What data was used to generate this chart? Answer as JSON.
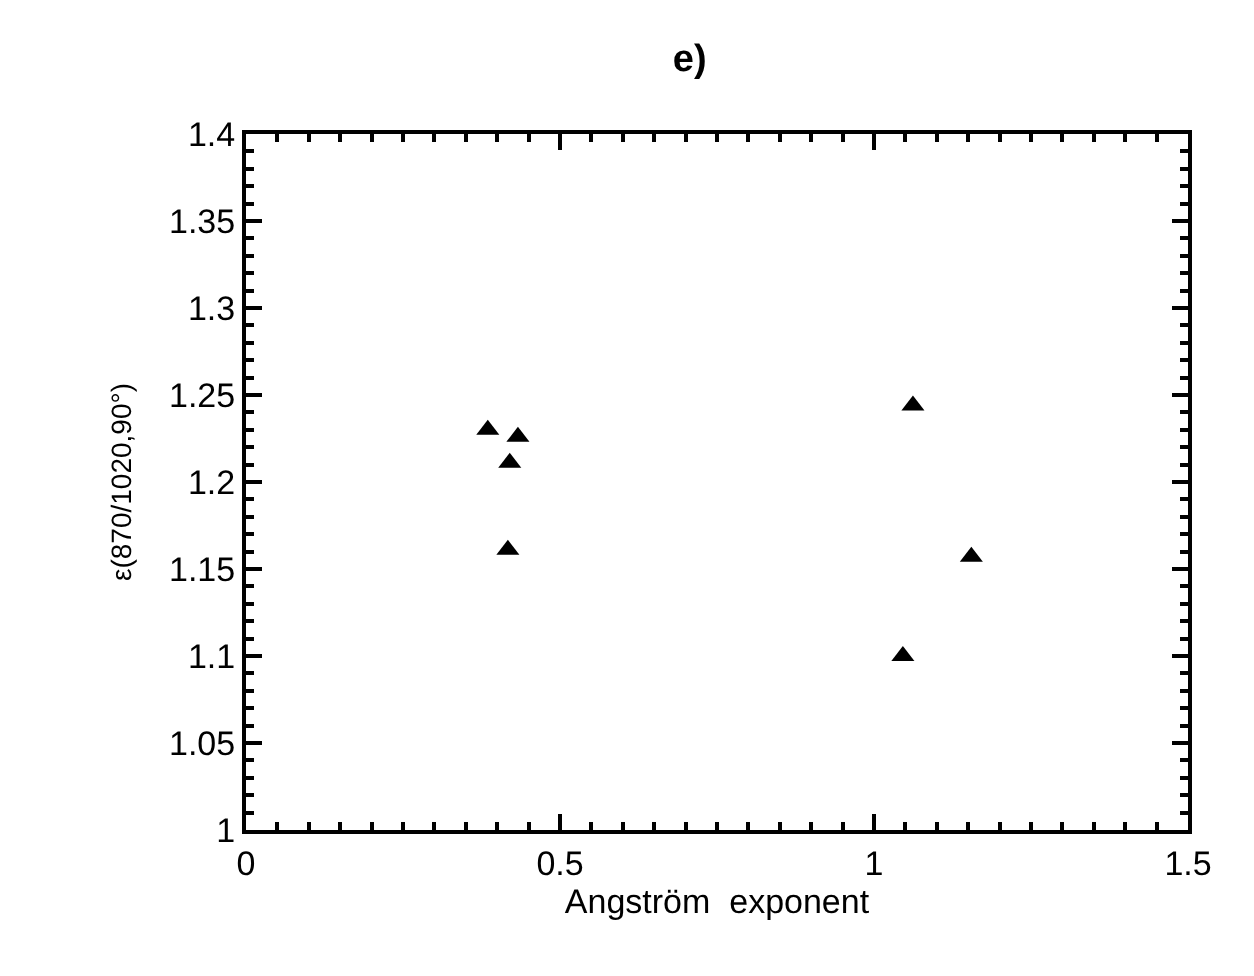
{
  "chart_data": {
    "type": "scatter",
    "title": "e)",
    "xlabel": "Angström  exponent",
    "ylabel": "ε(870/1020,90°)",
    "x": [
      0.385,
      0.433,
      0.42,
      0.417,
      1.062,
      1.155,
      1.046
    ],
    "values": [
      1.23,
      1.226,
      1.211,
      1.161,
      1.244,
      1.157,
      1.1
    ],
    "color": "#000000",
    "marker": "triangle",
    "xlim": [
      0,
      1.5
    ],
    "xticks": [
      0,
      0.5,
      1,
      1.5
    ],
    "ylim": [
      1,
      1.4
    ],
    "yticks": [
      1,
      1.05,
      1.1,
      1.15,
      1.2,
      1.25,
      1.3,
      1.35,
      1.4
    ]
  }
}
